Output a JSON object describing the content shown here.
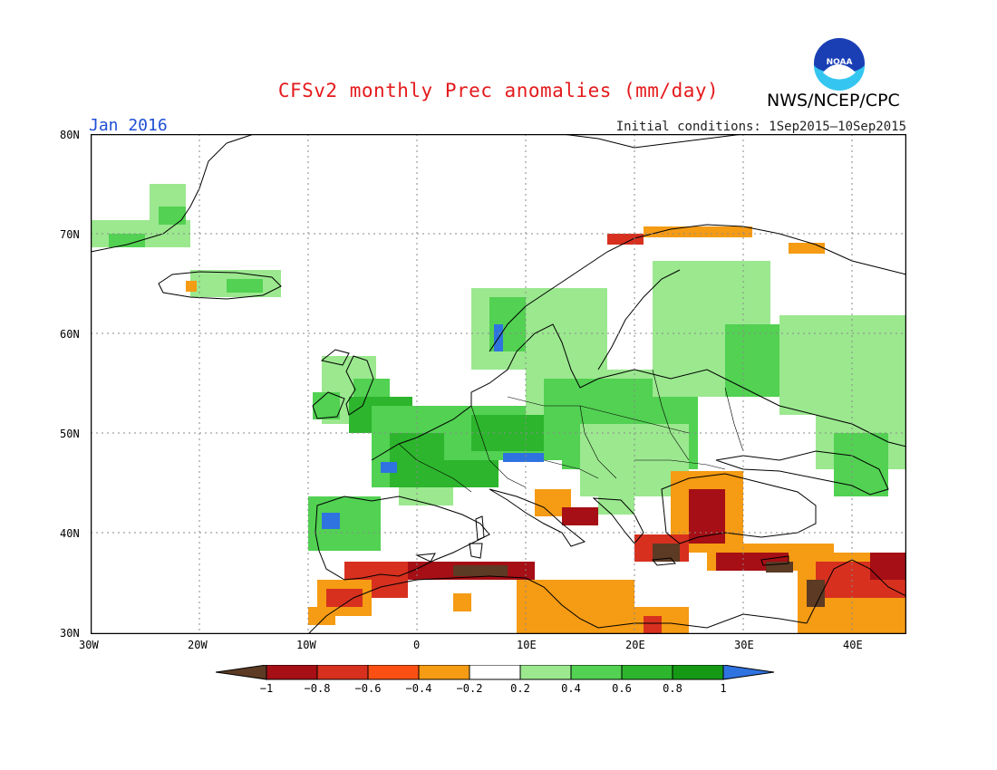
{
  "title": "CFSv2 monthly Prec anomalies (mm/day)",
  "agency": "NWS/NCEP/CPC",
  "logo_text": "NOAA",
  "month": "Jan 2016",
  "initial_conditions": "Initial conditions: 1Sep2015–10Sep2015",
  "lat_labels": [
    "80N",
    "70N",
    "60N",
    "50N",
    "40N",
    "30N"
  ],
  "lon_labels": [
    "30W",
    "20W",
    "10W",
    "0",
    "10E",
    "20E",
    "30E",
    "40E"
  ],
  "legend_labels": [
    "−1",
    "−0.8",
    "−0.6",
    "−0.4",
    "−0.2",
    "0.2",
    "0.4",
    "0.6",
    "0.8",
    "1"
  ],
  "legend_colors": [
    "#5c3a24",
    "#a50f15",
    "#d7301f",
    "#fb4f14",
    "#f59b14",
    "#ffffff",
    "#9be88f",
    "#52d152",
    "#2db52d",
    "#159915",
    "#2f73e0"
  ],
  "colors": {
    "title": "#e41a1c",
    "month": "#1f4fd6",
    "land_outline": "#000000",
    "grid": "#8a8a8a"
  },
  "map_domain": {
    "lon_min": -30,
    "lon_max": 45,
    "lat_min": 30,
    "lat_max": 80
  }
}
